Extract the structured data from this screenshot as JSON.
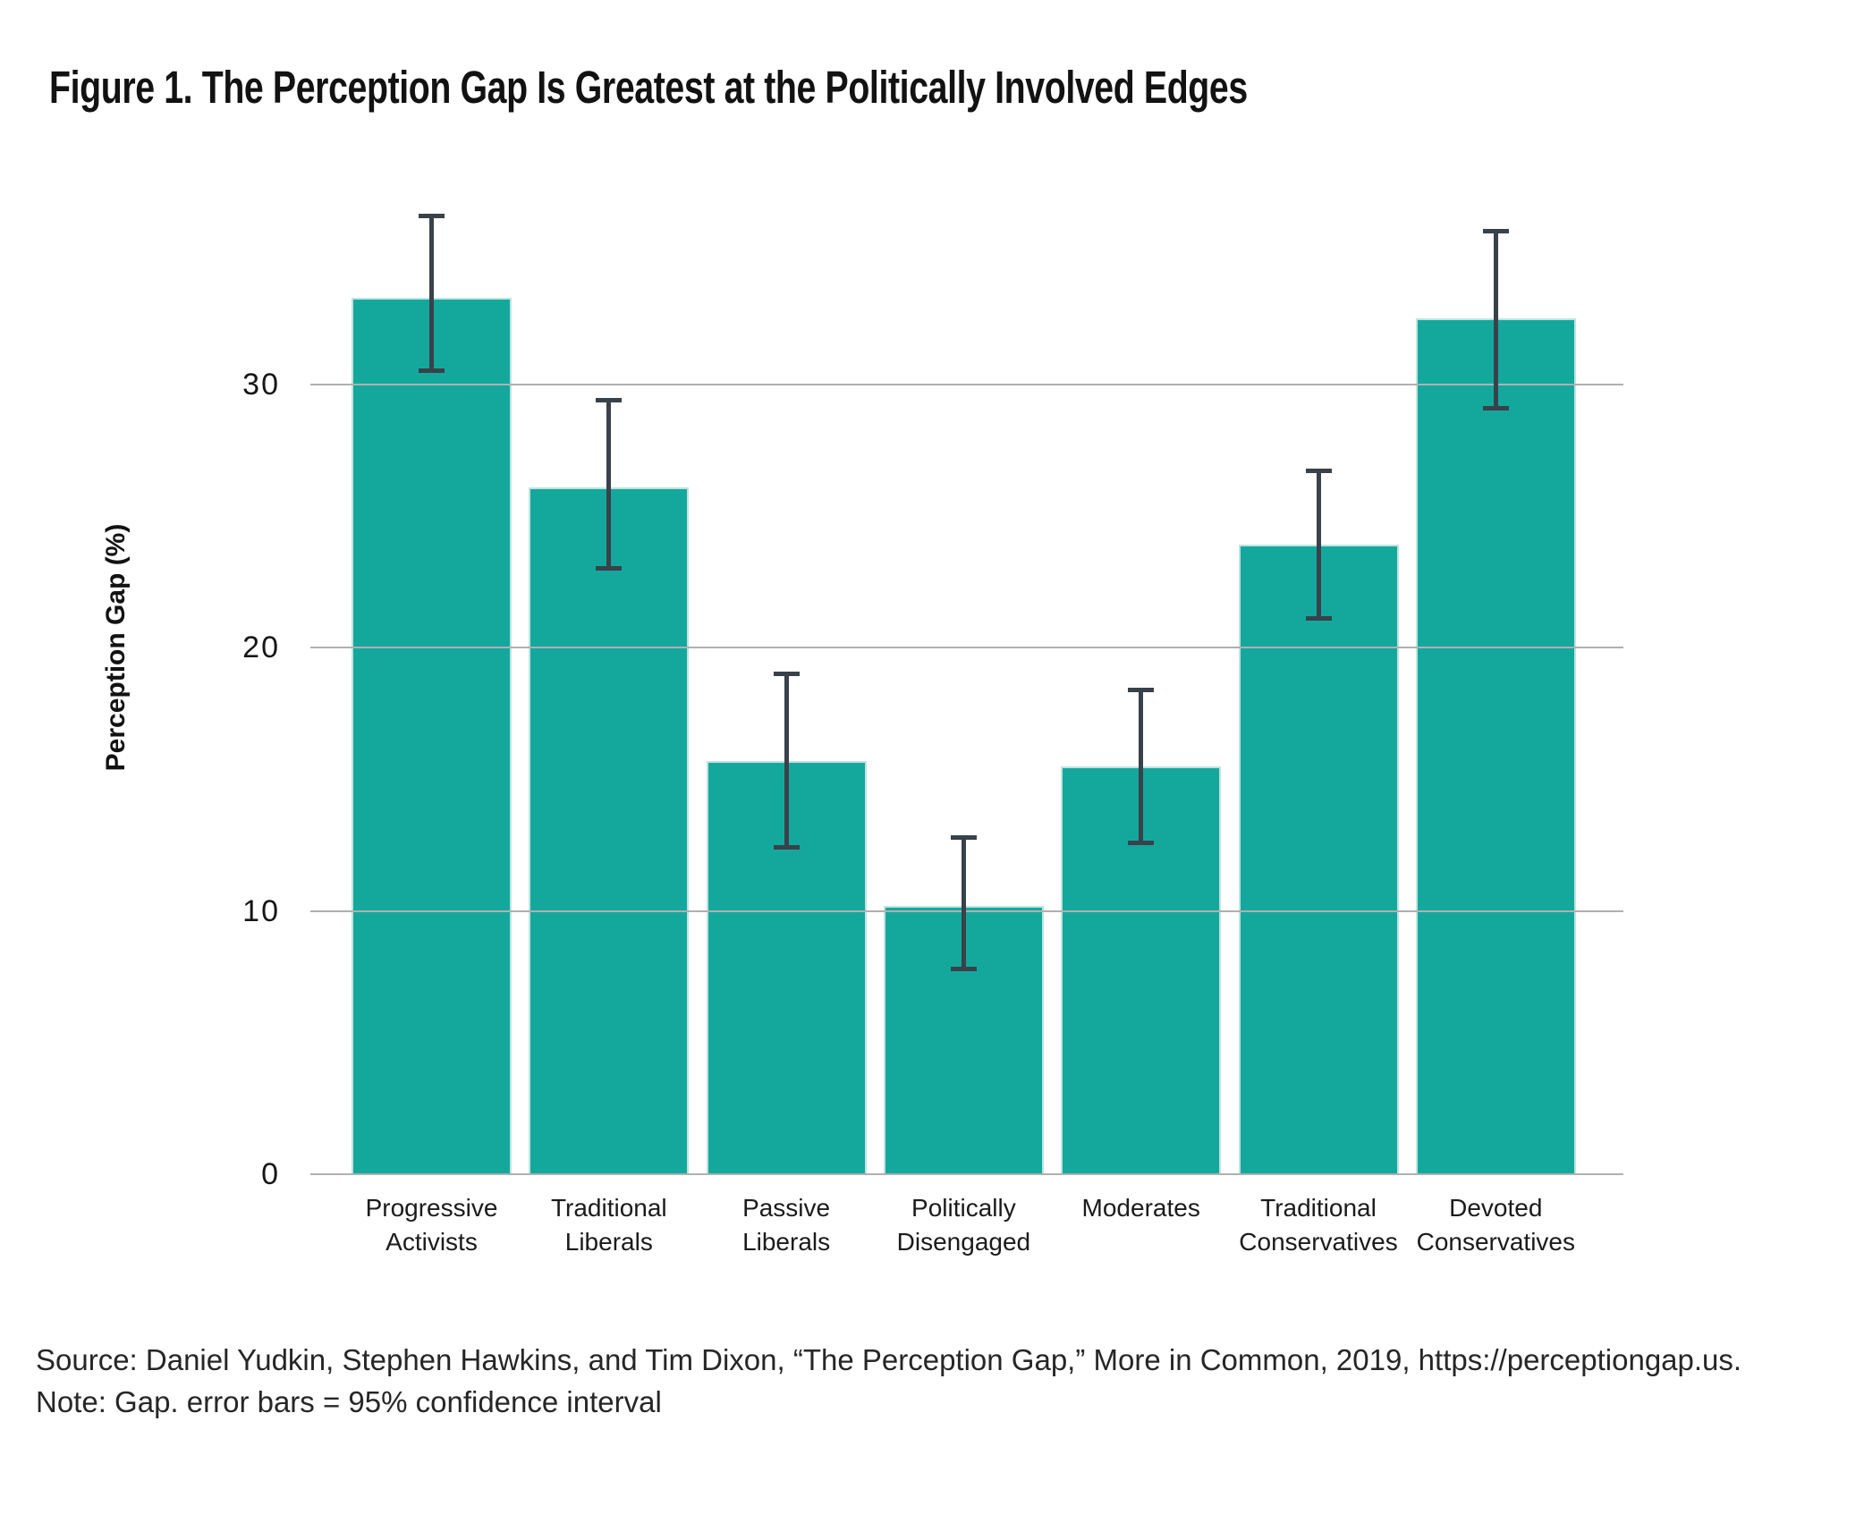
{
  "title": "Figure 1. The Perception Gap Is Greatest at the Politically Involved Edges",
  "chart_data": {
    "type": "bar",
    "title": "Figure 1. The Perception Gap Is Greatest at the Politically Involved Edges",
    "xlabel": "",
    "ylabel": "Perception Gap (%)",
    "categories": [
      "Progressive Activists",
      "Traditional Liberals",
      "Passive Liberals",
      "Politically Disengaged",
      "Moderates",
      "Traditional Conservatives",
      "Devoted Conservatives"
    ],
    "category_label_lines": [
      [
        "Progressive",
        "Activists"
      ],
      [
        "Traditional",
        "Liberals"
      ],
      [
        "Passive",
        "Liberals"
      ],
      [
        "Politically",
        "Disengaged"
      ],
      [
        "Moderates"
      ],
      [
        "Traditional",
        "Conservatives"
      ],
      [
        "Devoted",
        "Conservatives"
      ]
    ],
    "values": [
      33.3,
      26.1,
      15.7,
      10.2,
      15.5,
      23.9,
      32.5
    ],
    "ci_low": [
      30.5,
      23.0,
      12.4,
      7.8,
      12.6,
      21.1,
      29.1
    ],
    "ci_high": [
      36.4,
      29.4,
      19.0,
      12.8,
      18.4,
      26.7,
      35.8
    ],
    "error_bar_meaning": "95% confidence interval",
    "yticks": [
      0,
      10,
      20,
      30
    ],
    "ylim": [
      0,
      37.8
    ],
    "grid": true,
    "legend": false,
    "colors": {
      "bar": "#14a89d",
      "bar_edge": "#bfe3df",
      "error": "#39414a",
      "grid": "#b0b0b0"
    }
  },
  "footer": {
    "source": "Source: Daniel Yudkin, Stephen Hawkins, and Tim Dixon, “The Perception Gap,” More in Common, 2019, https://perceptiongap.us.",
    "note": "Note: Gap. error bars = 95% confidence interval"
  }
}
